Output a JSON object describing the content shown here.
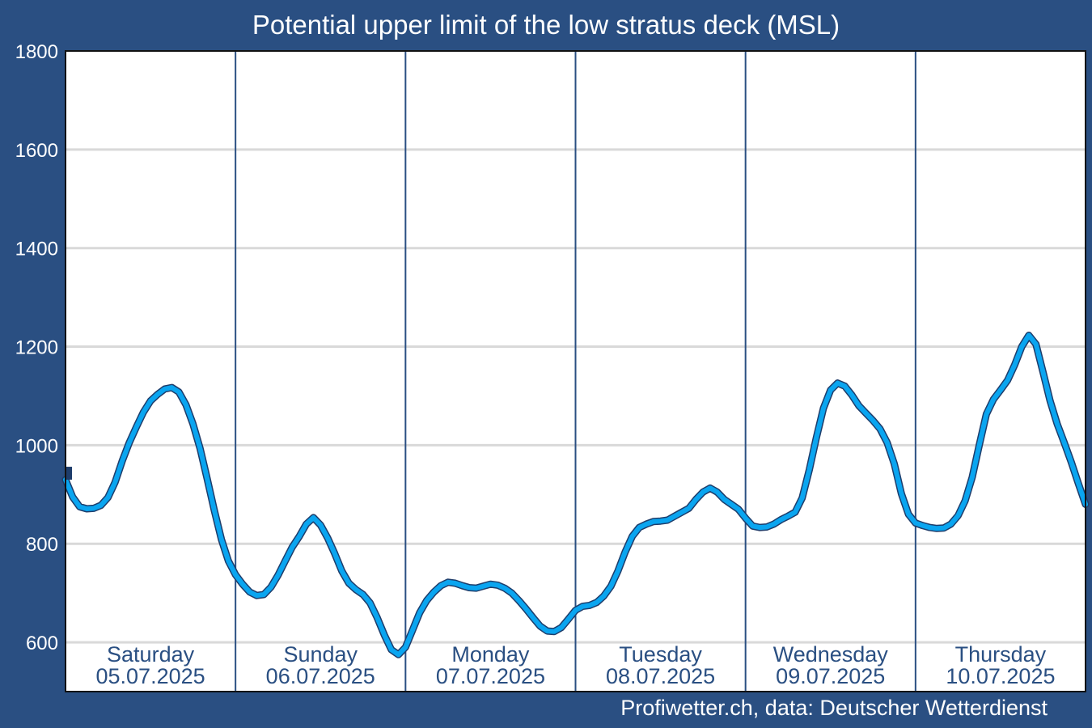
{
  "colors": {
    "background": "#2a4f82",
    "plot_background": "#ffffff",
    "grid": "#d9d9d9",
    "day_divider": "#2a4f82",
    "line": "#0aa5f0",
    "line_outline": "#1e3d6b",
    "text_light": "#ffffff",
    "text_dark": "#2a4f82"
  },
  "credit": "Profiwetter.ch, data: Deutscher Wetterdienst",
  "chart_data": {
    "type": "line",
    "title": "Potential upper limit of the low stratus deck (MSL)",
    "xlabel": "",
    "ylabel": "",
    "ylim": [
      500,
      1800
    ],
    "yticks": [
      600,
      800,
      1000,
      1200,
      1400,
      1600,
      1800
    ],
    "grid": true,
    "days": [
      {
        "name": "Saturday",
        "date": "05.07.2025"
      },
      {
        "name": "Sunday",
        "date": "06.07.2025"
      },
      {
        "name": "Monday",
        "date": "07.07.2025"
      },
      {
        "name": "Tuesday",
        "date": "08.07.2025"
      },
      {
        "name": "Wednesday",
        "date": "09.07.2025"
      },
      {
        "name": "Thursday",
        "date": "10.07.2025"
      }
    ],
    "x_unit": "hours from Saturday 05.07.2025 00:00",
    "series": [
      {
        "x": [
          0,
          1,
          2,
          3,
          4,
          5,
          6,
          7,
          8,
          9,
          10,
          11,
          12,
          13,
          14,
          15,
          16,
          17,
          18,
          19,
          20,
          21,
          22,
          23,
          24,
          25,
          26,
          27,
          28,
          29,
          30,
          31,
          32,
          33,
          34,
          35,
          36,
          37,
          38,
          39,
          40,
          41,
          42,
          43,
          44,
          45,
          46,
          47,
          48,
          49,
          50,
          51,
          52,
          53,
          54,
          55,
          56,
          57,
          58,
          59,
          60,
          61,
          62,
          63,
          64,
          65,
          66,
          67,
          68,
          69,
          70,
          71,
          72,
          73,
          74,
          75,
          76,
          77,
          78,
          79,
          80,
          81,
          82,
          83,
          84,
          85,
          86,
          87,
          88,
          89,
          90,
          91,
          92,
          93,
          94,
          95,
          96,
          97,
          98,
          99,
          100,
          101,
          102,
          103,
          104,
          105,
          106,
          107,
          108,
          109,
          110,
          111,
          112,
          113,
          114,
          115,
          116,
          117,
          118,
          119,
          120,
          121,
          122,
          123,
          124,
          125,
          126,
          127,
          128,
          129,
          130,
          131,
          132,
          133,
          134,
          135,
          136,
          137,
          138,
          139,
          140,
          141,
          142,
          143,
          144
        ],
        "y": [
          930,
          895,
          875,
          871,
          872,
          878,
          894,
          925,
          968,
          1005,
          1037,
          1067,
          1090,
          1103,
          1114,
          1117,
          1108,
          1082,
          1043,
          993,
          932,
          868,
          809,
          765,
          737,
          718,
          702,
          695,
          697,
          712,
          736,
          765,
          793,
          815,
          840,
          853,
          838,
          812,
          780,
          745,
          720,
          707,
          697,
          680,
          650,
          615,
          585,
          575,
          590,
          625,
          660,
          685,
          702,
          715,
          722,
          720,
          715,
          711,
          710,
          714,
          718,
          716,
          710,
          700,
          685,
          668,
          650,
          633,
          623,
          622,
          630,
          647,
          665,
          673,
          675,
          681,
          694,
          714,
          745,
          783,
          815,
          833,
          840,
          845,
          846,
          848,
          856,
          864,
          872,
          890,
          905,
          913,
          905,
          890,
          880,
          870,
          852,
          836,
          833,
          834,
          840,
          849,
          856,
          864,
          893,
          950,
          1015,
          1075,
          1112,
          1126,
          1120,
          1102,
          1080,
          1065,
          1050,
          1033,
          1005,
          962,
          902,
          860,
          842,
          837,
          833,
          831,
          832,
          840,
          857,
          887,
          935,
          1000,
          1063,
          1093,
          1112,
          1132,
          1163,
          1200,
          1223,
          1205,
          1148,
          1090,
          1043,
          1005,
          965,
          922,
          880
        ]
      }
    ]
  }
}
